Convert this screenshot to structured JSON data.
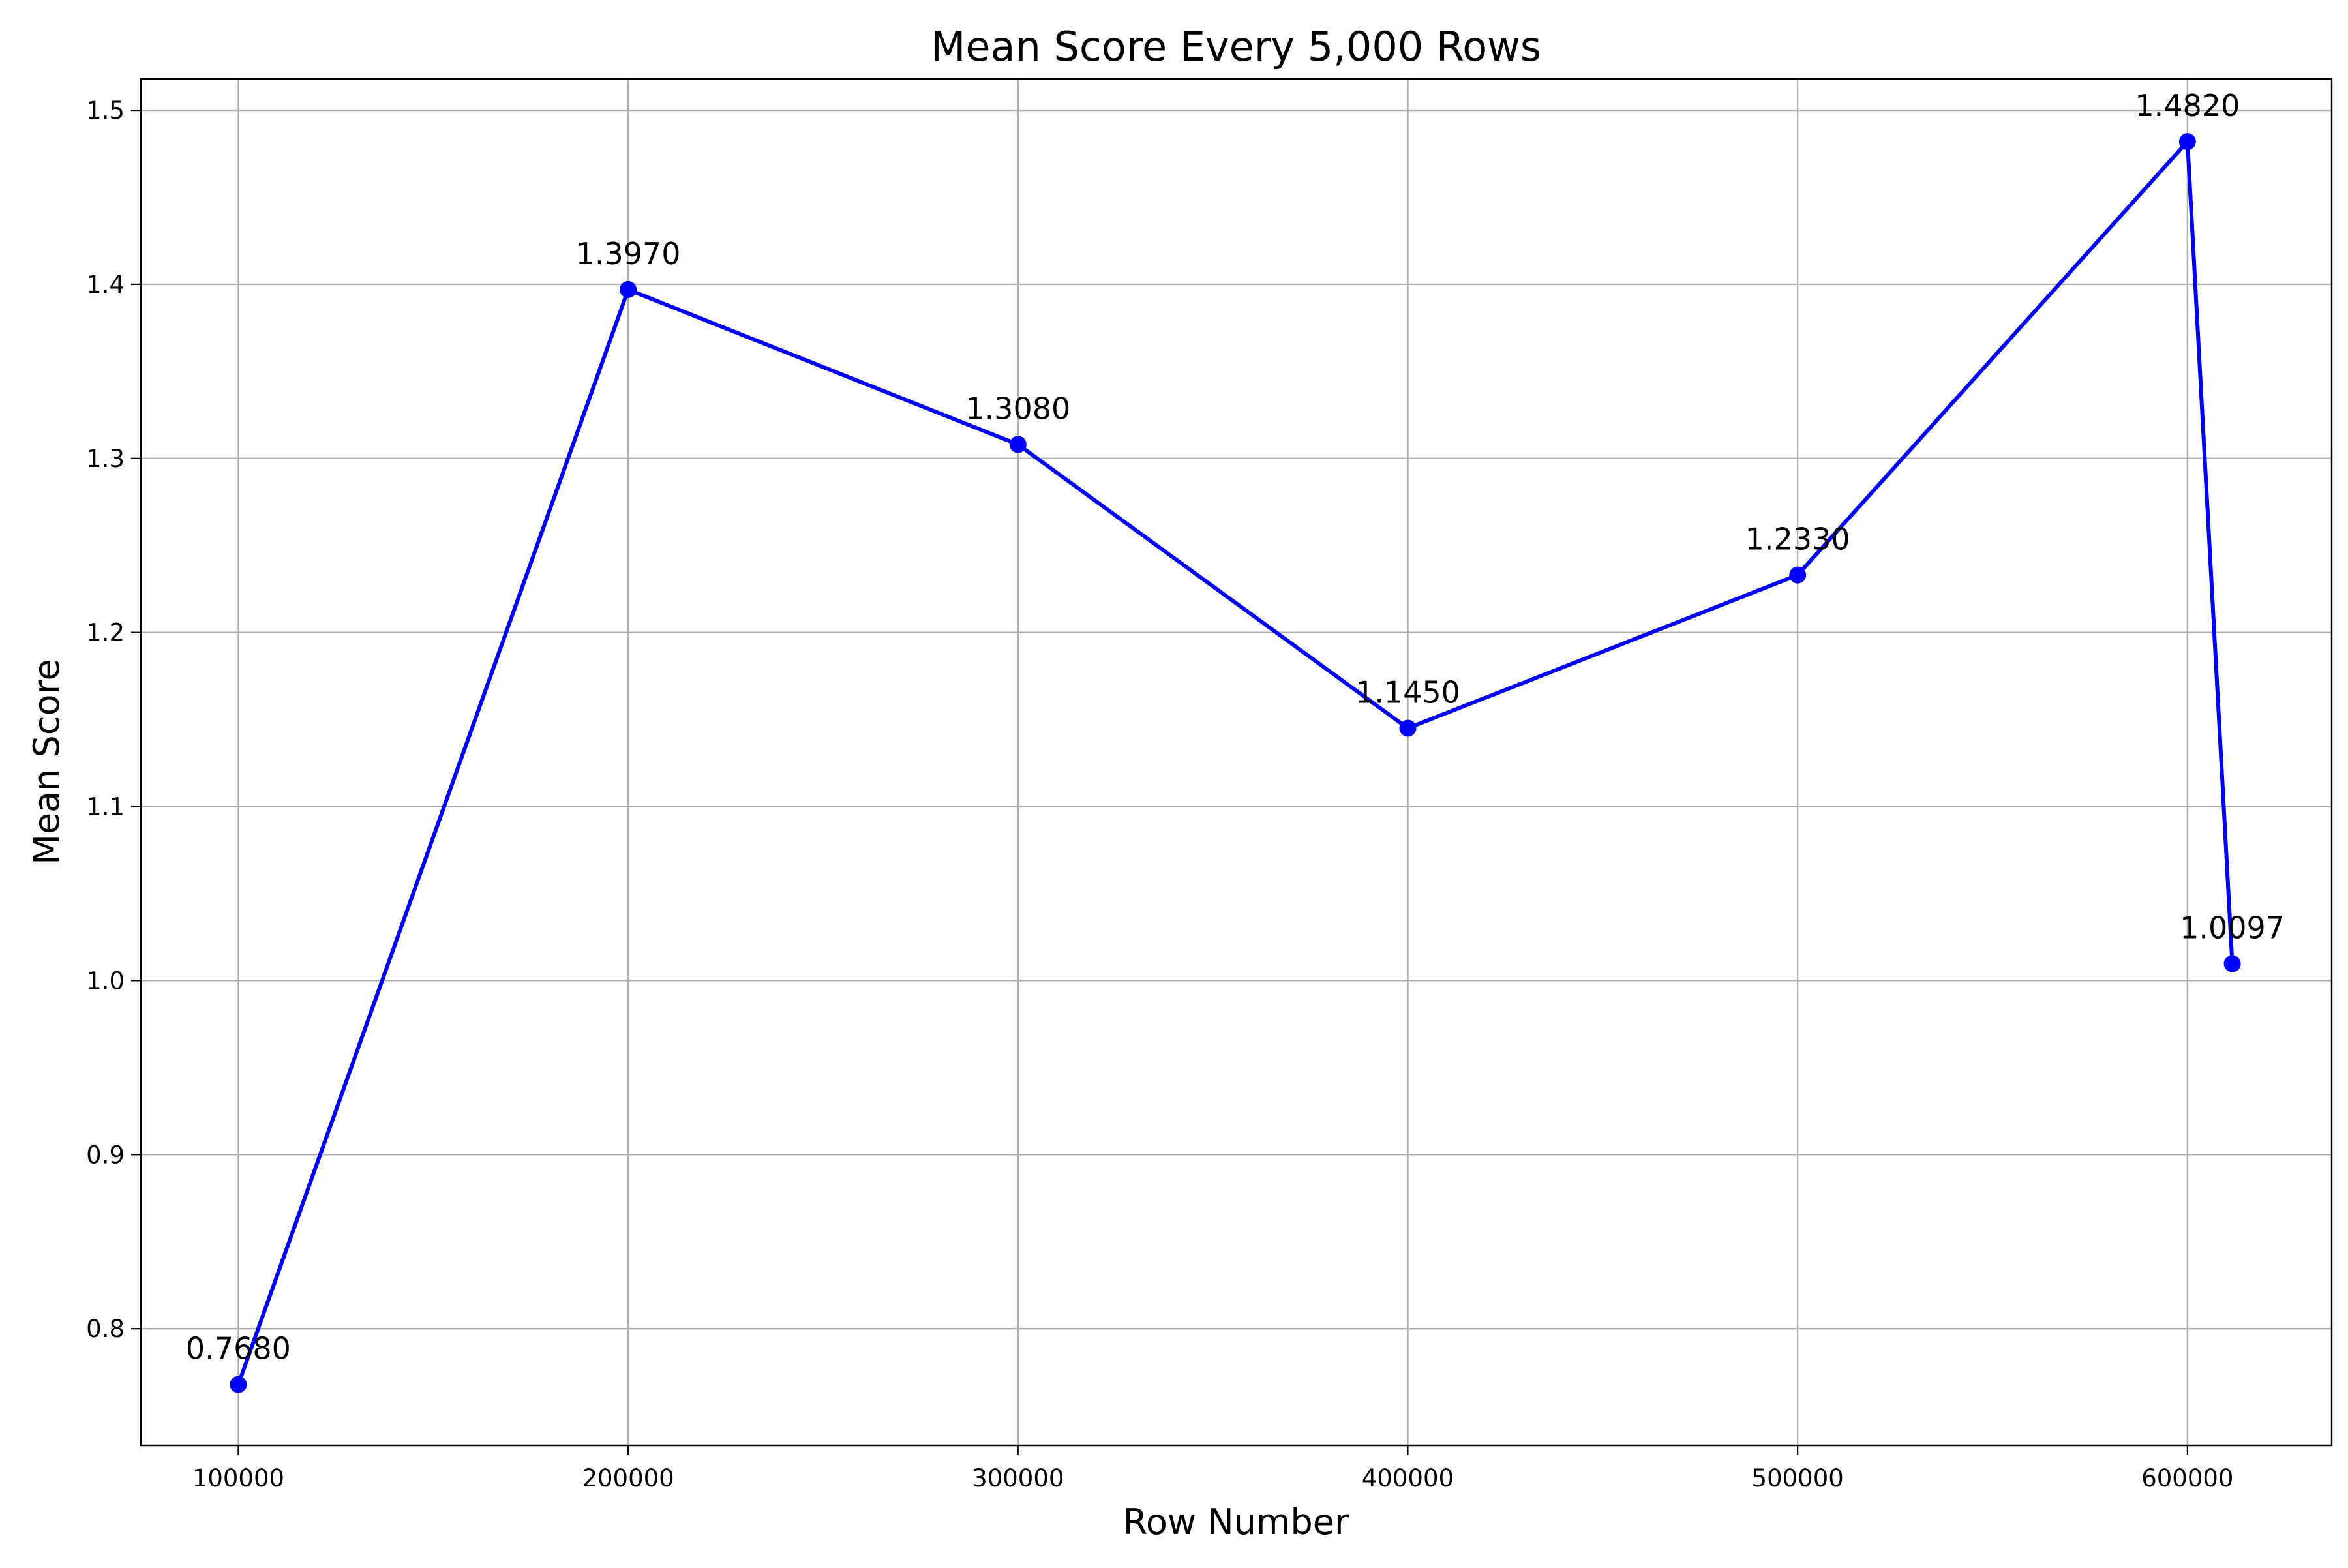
{
  "chart_data": {
    "type": "line",
    "title": "Mean Score Every 5,000 Rows",
    "xlabel": "Row Number",
    "ylabel": "Mean Score",
    "xlim": [
      75000,
      637000
    ],
    "ylim": [
      0.733,
      1.518
    ],
    "grid": true,
    "x_ticks": [
      100000,
      200000,
      300000,
      400000,
      500000,
      600000
    ],
    "x_tick_labels": [
      "100000",
      "200000",
      "300000",
      "400000",
      "500000",
      "600000"
    ],
    "y_ticks": [
      0.8,
      0.9,
      1.0,
      1.1,
      1.2,
      1.3,
      1.4,
      1.5
    ],
    "y_tick_labels": [
      "0.8",
      "0.9",
      "1.0",
      "1.1",
      "1.2",
      "1.3",
      "1.4",
      "1.5"
    ],
    "series": [
      {
        "color": "#0000ff",
        "marker": "circle",
        "x": [
          100000,
          200000,
          300000,
          400000,
          500000,
          600000,
          611500
        ],
        "y": [
          0.768,
          1.397,
          1.308,
          1.145,
          1.233,
          1.482,
          1.0097
        ],
        "labels": [
          "0.7680",
          "1.3970",
          "1.3080",
          "1.1450",
          "1.2330",
          "1.4820",
          "1.0097"
        ]
      }
    ]
  }
}
